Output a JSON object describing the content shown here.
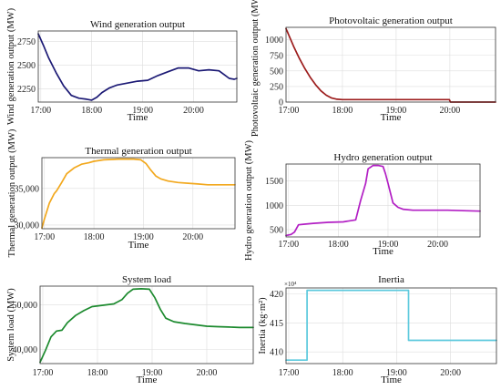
{
  "chart_data": [
    {
      "id": "wind",
      "type": "line",
      "title": "Wind generation output",
      "xlabel": "Time",
      "ylabel": "Wind generation output (MW)",
      "xlim": [
        16.95,
        20.85
      ],
      "ylim": [
        2110,
        2860
      ],
      "xticks": [
        {
          "v": 17,
          "label": "17:00"
        },
        {
          "v": 18,
          "label": "18:00"
        },
        {
          "v": 19,
          "label": "19:00"
        },
        {
          "v": 20,
          "label": "20:00"
        }
      ],
      "yticks": [
        {
          "v": 2250,
          "label": "2250"
        },
        {
          "v": 2500,
          "label": "2500"
        },
        {
          "v": 2750,
          "label": "2750"
        }
      ],
      "color": "#1c1a75",
      "x": [
        16.95,
        17.05,
        17.15,
        17.3,
        17.45,
        17.6,
        17.75,
        17.9,
        18.0,
        18.1,
        18.2,
        18.35,
        18.5,
        18.7,
        18.9,
        19.1,
        19.3,
        19.5,
        19.7,
        19.9,
        20.1,
        20.3,
        20.5,
        20.6,
        20.7,
        20.8,
        20.85
      ],
      "y": [
        2830,
        2710,
        2580,
        2420,
        2280,
        2180,
        2150,
        2140,
        2130,
        2160,
        2210,
        2260,
        2290,
        2310,
        2330,
        2340,
        2390,
        2430,
        2470,
        2470,
        2440,
        2450,
        2440,
        2400,
        2360,
        2350,
        2360
      ]
    },
    {
      "id": "pv",
      "type": "line",
      "title": "Photovoltaic generation output",
      "xlabel": "Time",
      "ylabel": "Photovoltaic generation output (MW)",
      "xlim": [
        16.95,
        20.85
      ],
      "ylim": [
        0,
        1200
      ],
      "xticks": [
        {
          "v": 17,
          "label": "17:00"
        },
        {
          "v": 18,
          "label": "18:00"
        },
        {
          "v": 19,
          "label": "19:00"
        },
        {
          "v": 20,
          "label": "20:00"
        }
      ],
      "yticks": [
        {
          "v": 0,
          "label": "0"
        },
        {
          "v": 250,
          "label": "250"
        },
        {
          "v": 500,
          "label": "500"
        },
        {
          "v": 750,
          "label": "750"
        },
        {
          "v": 1000,
          "label": "1000"
        }
      ],
      "color": "#9c1c1c",
      "x": [
        16.95,
        17.0,
        17.1,
        17.2,
        17.3,
        17.4,
        17.5,
        17.6,
        17.7,
        17.8,
        17.9,
        18.0,
        18.3,
        18.6,
        19.0,
        19.5,
        19.99,
        20.01,
        20.85
      ],
      "y": [
        1180,
        1080,
        880,
        700,
        540,
        400,
        280,
        180,
        110,
        65,
        45,
        40,
        40,
        40,
        40,
        40,
        40,
        0,
        0
      ]
    },
    {
      "id": "thermal",
      "type": "line",
      "title": "Thermal generation output",
      "xlabel": "Time",
      "ylabel": "Thermal generation output (MW)",
      "xlim": [
        16.95,
        20.85
      ],
      "ylim": [
        29500,
        39200
      ],
      "xticks": [
        {
          "v": 17,
          "label": "17:00"
        },
        {
          "v": 18,
          "label": "18:00"
        },
        {
          "v": 19,
          "label": "19:00"
        },
        {
          "v": 20,
          "label": "20:00"
        }
      ],
      "yticks": [
        {
          "v": 30000,
          "label": "30,000"
        },
        {
          "v": 35000,
          "label": "35,000"
        }
      ],
      "color": "#f2a81d",
      "x": [
        16.95,
        17.0,
        17.1,
        17.2,
        17.25,
        17.35,
        17.45,
        17.6,
        17.75,
        17.9,
        18.0,
        18.2,
        18.5,
        18.8,
        18.95,
        19.05,
        19.15,
        19.25,
        19.35,
        19.5,
        19.7,
        19.9,
        20.1,
        20.3,
        20.5,
        20.7,
        20.85
      ],
      "y": [
        29600,
        30800,
        33000,
        34300,
        34700,
        35800,
        37000,
        37800,
        38300,
        38500,
        38700,
        38900,
        39000,
        39000,
        38900,
        38400,
        37500,
        36700,
        36300,
        36000,
        35800,
        35700,
        35600,
        35500,
        35500,
        35500,
        35500
      ]
    },
    {
      "id": "hydro",
      "type": "line",
      "title": "Hydro generation output",
      "xlabel": "Time",
      "ylabel": "Hydro generation output (MW)",
      "xlim": [
        16.95,
        20.85
      ],
      "ylim": [
        350,
        1850
      ],
      "xticks": [
        {
          "v": 17,
          "label": "17:00"
        },
        {
          "v": 18,
          "label": "18:00"
        },
        {
          "v": 19,
          "label": "19:00"
        },
        {
          "v": 20,
          "label": "20:00"
        }
      ],
      "yticks": [
        {
          "v": 500,
          "label": "500"
        },
        {
          "v": 1000,
          "label": "1000"
        },
        {
          "v": 1500,
          "label": "1500"
        }
      ],
      "color": "#b21fc4",
      "x": [
        16.95,
        17.05,
        17.12,
        17.2,
        17.3,
        17.5,
        17.8,
        18.1,
        18.35,
        18.45,
        18.55,
        18.6,
        18.7,
        18.8,
        18.9,
        18.95,
        19.0,
        19.05,
        19.1,
        19.2,
        19.3,
        19.5,
        19.8,
        20.2,
        20.5,
        20.85
      ],
      "y": [
        380,
        400,
        450,
        600,
        610,
        630,
        650,
        660,
        700,
        1100,
        1450,
        1750,
        1820,
        1820,
        1800,
        1650,
        1450,
        1250,
        1050,
        960,
        920,
        900,
        900,
        900,
        890,
        880
      ]
    },
    {
      "id": "load",
      "type": "line",
      "title": "System load",
      "xlabel": "Time",
      "ylabel": "System load (MW)",
      "xlim": [
        16.95,
        20.85
      ],
      "ylim": [
        36800,
        54200
      ],
      "xticks": [
        {
          "v": 17,
          "label": "17:00"
        },
        {
          "v": 18,
          "label": "18:00"
        },
        {
          "v": 19,
          "label": "19:00"
        },
        {
          "v": 20,
          "label": "20:00"
        }
      ],
      "yticks": [
        {
          "v": 40000,
          "label": "40,000"
        },
        {
          "v": 50000,
          "label": "50,000"
        }
      ],
      "color": "#1c8a2e",
      "x": [
        16.95,
        17.05,
        17.15,
        17.25,
        17.35,
        17.45,
        17.6,
        17.75,
        17.9,
        18.1,
        18.3,
        18.45,
        18.55,
        18.65,
        18.8,
        18.95,
        19.05,
        19.15,
        19.25,
        19.4,
        19.6,
        19.8,
        20.0,
        20.2,
        20.4,
        20.6,
        20.85
      ],
      "y": [
        37100,
        39800,
        42800,
        44100,
        44300,
        46000,
        47600,
        48700,
        49600,
        49900,
        50200,
        51200,
        52600,
        53500,
        53600,
        53500,
        51600,
        49000,
        47000,
        46200,
        45800,
        45500,
        45200,
        45100,
        45000,
        44900,
        44900
      ]
    },
    {
      "id": "inertia",
      "type": "line",
      "title": "Inertia",
      "xlabel": "Time",
      "ylabel": "Inertia (kg·m²)",
      "multiplier": "×10⁴",
      "xlim": [
        16.95,
        20.85
      ],
      "ylim": [
        408,
        421
      ],
      "xticks": [
        {
          "v": 17,
          "label": "17:00"
        },
        {
          "v": 18,
          "label": "18:00"
        },
        {
          "v": 19,
          "label": "19:00"
        },
        {
          "v": 20,
          "label": "20:00"
        }
      ],
      "yticks": [
        {
          "v": 410,
          "label": "410"
        },
        {
          "v": 415,
          "label": "415"
        },
        {
          "v": 420,
          "label": "420"
        }
      ],
      "color": "#5cc9dd",
      "x": [
        16.95,
        17.34,
        17.34,
        19.22,
        19.22,
        20.85
      ],
      "y": [
        408.6,
        408.6,
        420.6,
        420.6,
        412.0,
        412.0
      ]
    }
  ]
}
